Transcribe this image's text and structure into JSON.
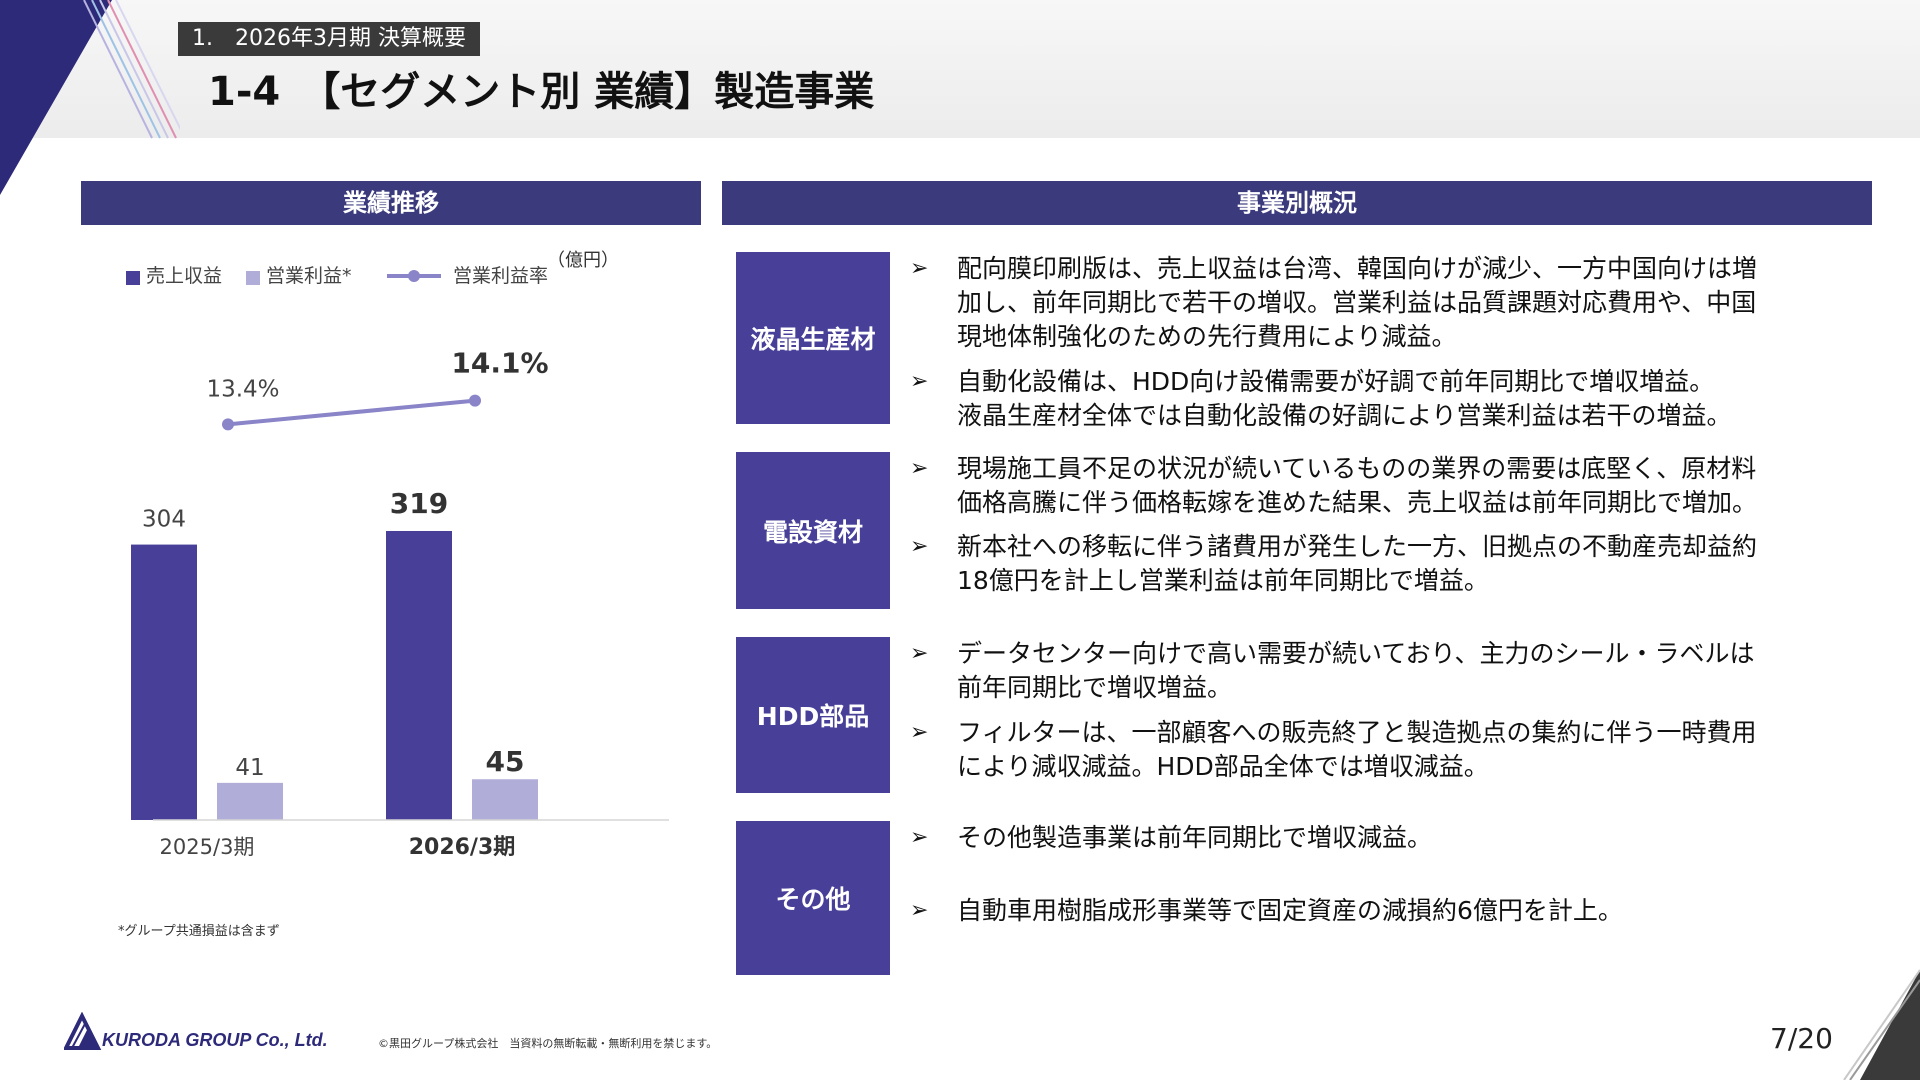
{
  "header": {
    "section_tag": "1.　2026年3月期  決算概要",
    "title": "1-4　【セグメント別 業績】製造事業"
  },
  "left_panel": {
    "heading": "業績推移"
  },
  "right_panel": {
    "heading": "事業別概況"
  },
  "colors": {
    "navy": "#3b3a7c",
    "sales_bar": "#484098",
    "profit_bar": "#b1add9",
    "margin_line": "#8a84c8",
    "segment_box": "#484098"
  },
  "chart_data": {
    "type": "bar",
    "unit": "（億円）",
    "categories": [
      "2025/3期",
      "2026/3期"
    ],
    "series": [
      {
        "name": "売上収益",
        "values": [
          304,
          319
        ],
        "labels": [
          "304",
          "319"
        ]
      },
      {
        "name": "営業利益*",
        "values": [
          41,
          45
        ],
        "labels": [
          "41",
          "45"
        ]
      },
      {
        "name": "営業利益率",
        "type": "line",
        "values": [
          13.4,
          14.1
        ],
        "labels": [
          "13.4%",
          "14.1%"
        ]
      }
    ],
    "legend_position": "top-left",
    "grid": false
  },
  "footnote": "*グループ共通損益は含まず",
  "segments": [
    {
      "name": "液晶生産材",
      "bullets": [
        [
          "配向膜印刷版は、売上収益は台湾、韓国向けが減少、一方中国向けは増",
          "加し、前年同期比で若干の増収。営業利益は品質課題対応費用や、中国",
          "現地体制強化のための先行費用により減益。"
        ],
        [
          "自動化設備は、HDD向け設備需要が好調で前年同期比で増収増益。",
          "液晶生産材全体では自動化設備の好調により営業利益は若干の増益。"
        ]
      ]
    },
    {
      "name": "電設資材",
      "bullets": [
        [
          "現場施工員不足の状況が続いているものの業界の需要は底堅く、原材料",
          "価格高騰に伴う価格転嫁を進めた結果、売上収益は前年同期比で増加。"
        ],
        [
          "新本社への移転に伴う諸費用が発生した一方、旧拠点の不動産売却益約",
          "18億円を計上し営業利益は前年同期比で増益。"
        ]
      ]
    },
    {
      "name": "HDD部品",
      "bullets": [
        [
          "データセンター向けで高い需要が続いており、主力のシール・ラベルは",
          "前年同期比で増収増益。"
        ],
        [
          "フィルターは、一部顧客への販売終了と製造拠点の集約に伴う一時費用",
          "により減収減益。HDD部品全体では増収減益。"
        ]
      ]
    },
    {
      "name": "その他",
      "bullets": [
        [
          "その他製造事業は前年同期比で増収減益。"
        ],
        [
          "自動車用樹脂成形事業等で固定資産の減損約6億円を計上。"
        ]
      ]
    }
  ],
  "footer": {
    "company": "KURODA GROUP Co., Ltd.",
    "copyright": "©黒田グループ株式会社　当資料の無断転載・無断利用を禁じます。",
    "page": "7/20"
  }
}
